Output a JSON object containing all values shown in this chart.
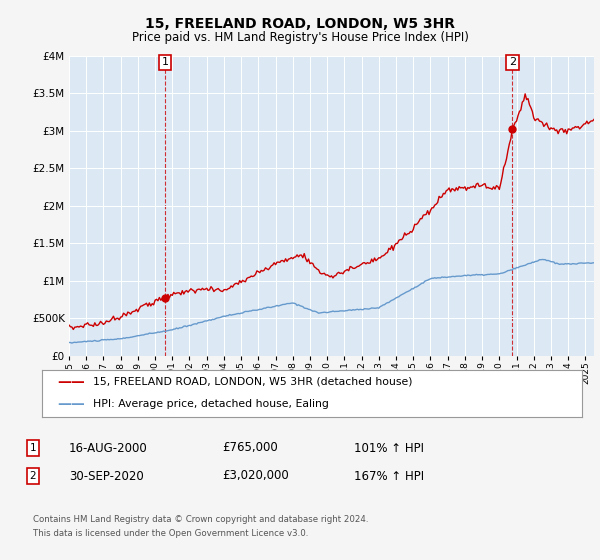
{
  "title": "15, FREELAND ROAD, LONDON, W5 3HR",
  "subtitle": "Price paid vs. HM Land Registry's House Price Index (HPI)",
  "red_label": "15, FREELAND ROAD, LONDON, W5 3HR (detached house)",
  "blue_label": "HPI: Average price, detached house, Ealing",
  "point1_date": "16-AUG-2000",
  "point1_price": "£765,000",
  "point1_hpi": "101% ↑ HPI",
  "point2_date": "30-SEP-2020",
  "point2_price": "£3,020,000",
  "point2_hpi": "167% ↑ HPI",
  "footer1": "Contains HM Land Registry data © Crown copyright and database right 2024.",
  "footer2": "This data is licensed under the Open Government Licence v3.0.",
  "ylim": [
    0,
    4000000
  ],
  "xlim": [
    1995,
    2025.5
  ],
  "red_color": "#cc0000",
  "blue_color": "#6699cc",
  "plot_bg_color": "#dce9f5",
  "background_color": "#f5f5f5",
  "grid_color": "#ffffff",
  "t1": 2000.583,
  "t2": 2020.75,
  "red_y1": 765000,
  "red_y2": 3020000
}
